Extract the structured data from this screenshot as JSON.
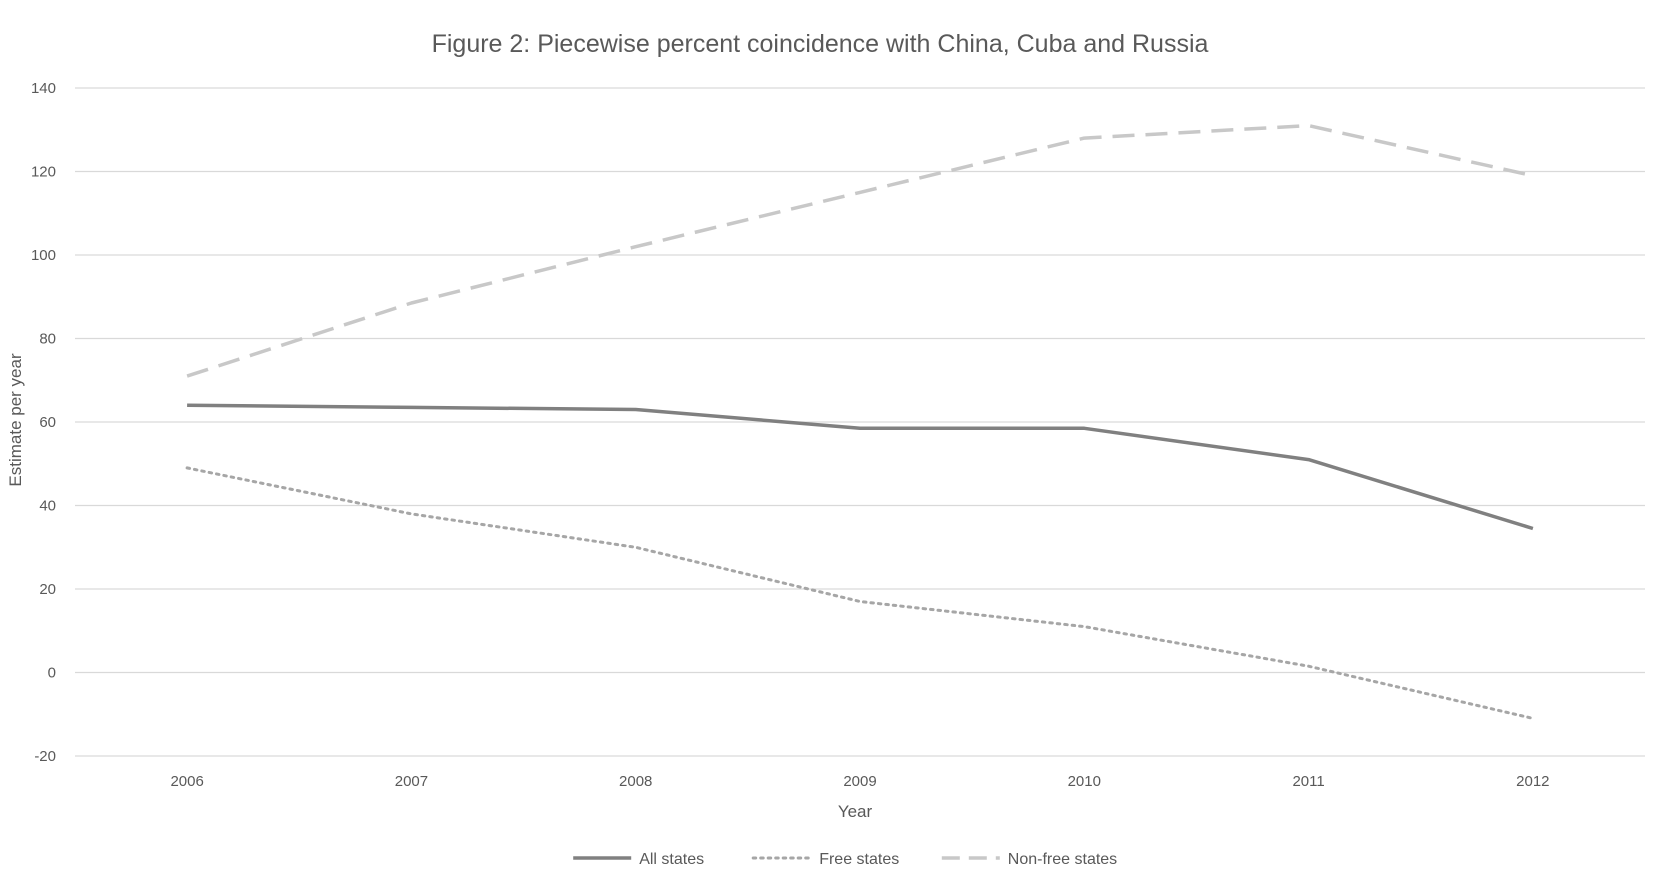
{
  "chart_data": {
    "type": "line",
    "title": "Figure 2: Piecewise percent coincidence with China, Cuba and Russia",
    "xlabel": "Year",
    "ylabel": "Estimate per year",
    "categories": [
      "2006",
      "2007",
      "2008",
      "2009",
      "2010",
      "2011",
      "2012"
    ],
    "ylim": [
      -20,
      140
    ],
    "yticks": [
      140,
      120,
      100,
      80,
      60,
      40,
      20,
      0,
      -20
    ],
    "grid": true,
    "legend_position": "bottom",
    "series": [
      {
        "name": "All states",
        "values": [
          64,
          63.5,
          63,
          58.5,
          58.5,
          51,
          34.5
        ],
        "style": "solid",
        "color": "#808080"
      },
      {
        "name": "Free states",
        "values": [
          49,
          38,
          30,
          17,
          11,
          1.5,
          -11
        ],
        "style": "dotted",
        "color": "#a6a6a6"
      },
      {
        "name": "Non-free states",
        "values": [
          71,
          88.5,
          102,
          115,
          128,
          131,
          119
        ],
        "style": "dashed",
        "color": "#c8c8c8"
      }
    ],
    "gridline_color": "#d9d9d9"
  }
}
